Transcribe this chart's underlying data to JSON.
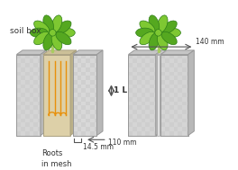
{
  "bg_color": "#ffffff",
  "panel_light": "#d8d8d8",
  "panel_checker": "#c8c8c8",
  "panel_edge": "#999999",
  "side_top_color": "#bbbbbb",
  "side_right_color": "#aaaaaa",
  "root_color": "#e8900a",
  "mesh_fill": "#e5d8b8",
  "plant_dark": "#2e7d18",
  "plant_light": "#7ec832",
  "plant_mid": "#55a820",
  "stem_color": "#a8cc60",
  "arrow_color": "#555555",
  "text_color": "#333333",
  "label_soil_box": "soil box",
  "label_roots": "Roots\nin mesh",
  "label_14": "14.5 mm",
  "label_110": "110 mm",
  "label_140": "140 mm",
  "label_1L": "1 L"
}
